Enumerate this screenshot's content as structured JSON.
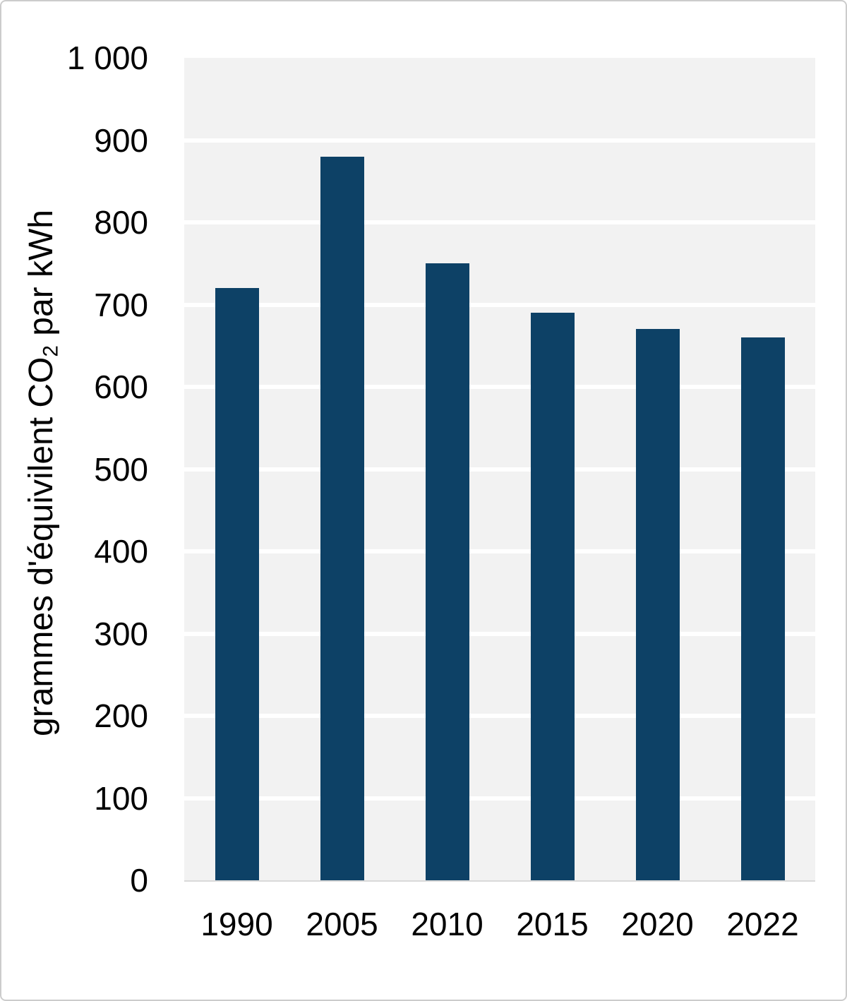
{
  "chart_data": {
    "type": "bar",
    "title": "",
    "xlabel": "",
    "ylabel": "grammes d'équivilent CO2 par kWh",
    "ylabel_parts": {
      "prefix": "grammes d'équivilent CO",
      "subscript": "2",
      "suffix": " par kWh"
    },
    "categories": [
      "1990",
      "2005",
      "2010",
      "2015",
      "2020",
      "2022"
    ],
    "values": [
      720,
      880,
      750,
      690,
      670,
      660
    ],
    "series": [
      {
        "name": "grammes d'équivilent CO2 par kWh",
        "values": [
          720,
          880,
          750,
          690,
          670,
          660
        ]
      }
    ],
    "ylim": [
      0,
      1000
    ],
    "ytick_step": 100,
    "yticks": [
      {
        "value": 0,
        "label": "0"
      },
      {
        "value": 100,
        "label": "100"
      },
      {
        "value": 200,
        "label": "200"
      },
      {
        "value": 300,
        "label": "300"
      },
      {
        "value": 400,
        "label": "400"
      },
      {
        "value": 500,
        "label": "500"
      },
      {
        "value": 600,
        "label": "600"
      },
      {
        "value": 700,
        "label": "700"
      },
      {
        "value": 800,
        "label": "800"
      },
      {
        "value": 900,
        "label": "900"
      },
      {
        "value": 1000,
        "label": "1 000"
      }
    ],
    "grid": "horizontal",
    "legend": "none",
    "colors": {
      "bar": "#0d4166",
      "plot_background": "#f2f2f2",
      "gridline": "#ffffff",
      "axis_line": "#d9d9d9",
      "text": "#000000",
      "page_border": "#cccccc"
    }
  }
}
